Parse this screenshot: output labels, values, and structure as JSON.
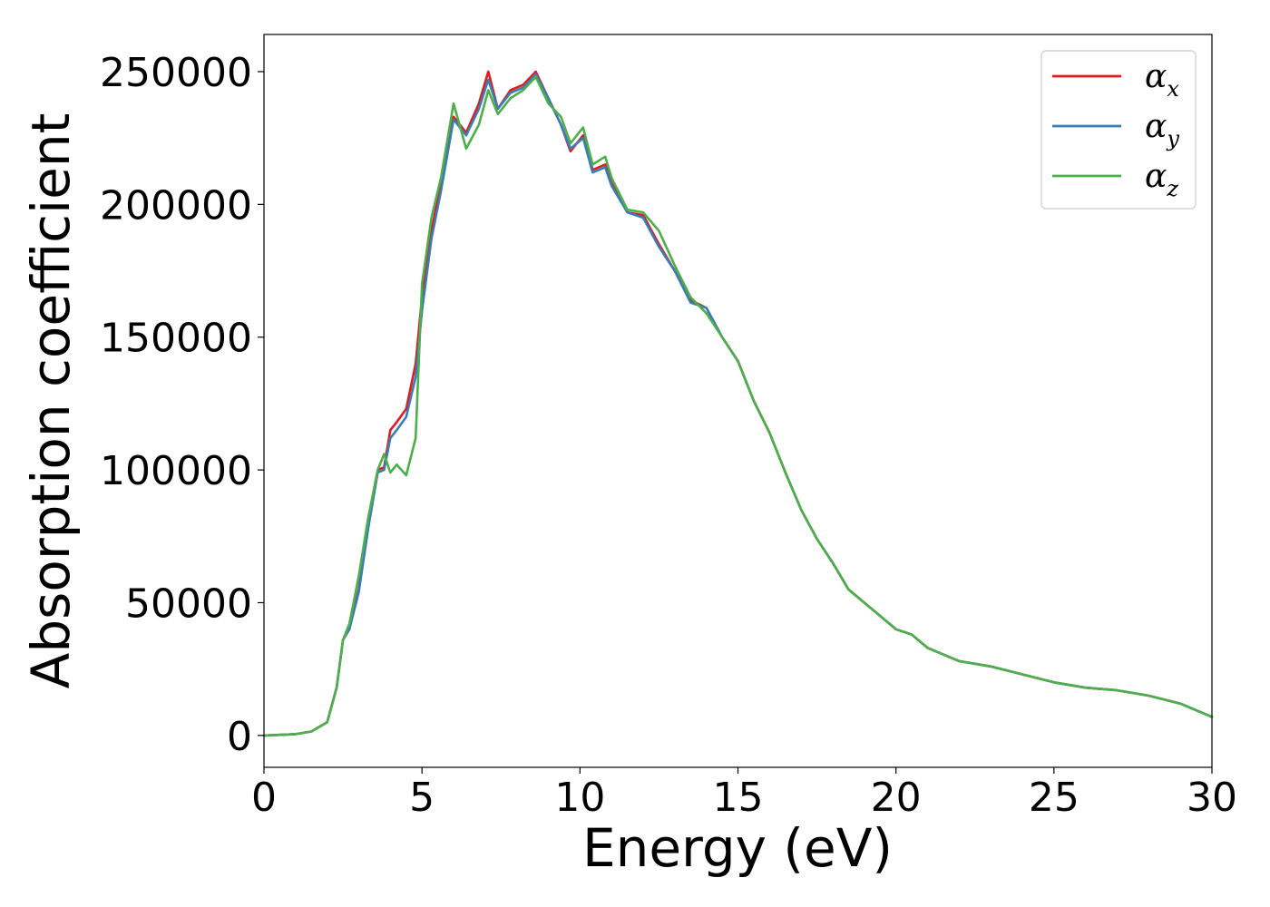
{
  "chart_data": {
    "type": "line",
    "xlabel": "Energy (eV)",
    "ylabel": "Absorption coefficient",
    "xlim": [
      0,
      30
    ],
    "ylim": [
      -12000,
      264000
    ],
    "xticks": [
      0,
      5,
      10,
      15,
      20,
      25,
      30
    ],
    "yticks": [
      0,
      50000,
      100000,
      150000,
      200000,
      250000
    ],
    "xtick_labels": [
      "0",
      "5",
      "10",
      "15",
      "20",
      "25",
      "30"
    ],
    "ytick_labels": [
      "0",
      "50000",
      "100000",
      "150000",
      "200000",
      "250000"
    ],
    "grid": false,
    "legend_position": "top-right",
    "series": [
      {
        "name": "α_x",
        "base": "α",
        "sub": "x",
        "color": "#e41a1c",
        "x": [
          0,
          1,
          1.5,
          2,
          2.3,
          2.5,
          2.7,
          3,
          3.3,
          3.6,
          3.8,
          4,
          4.2,
          4.5,
          4.8,
          5,
          5.3,
          5.6,
          6,
          6.4,
          6.8,
          7.1,
          7.4,
          7.8,
          8.2,
          8.6,
          9,
          9.4,
          9.7,
          10.1,
          10.4,
          10.8,
          11,
          11.5,
          12,
          12.5,
          13,
          13.5,
          14,
          14.5,
          15,
          15.5,
          16,
          16.5,
          17,
          17.5,
          18,
          18.5,
          19,
          19.5,
          20,
          20.5,
          21,
          22,
          23,
          24,
          25,
          26,
          27,
          28,
          29,
          30
        ],
        "y": [
          0,
          500,
          1500,
          5000,
          18000,
          36000,
          40000,
          55000,
          80000,
          100000,
          101000,
          115000,
          118000,
          123000,
          140000,
          165000,
          190000,
          208000,
          233000,
          227000,
          238000,
          250000,
          236000,
          243000,
          245000,
          250000,
          240000,
          230000,
          220000,
          226000,
          213000,
          215000,
          208000,
          197000,
          196000,
          185000,
          175000,
          164000,
          161000,
          150000,
          141000,
          126000,
          114000,
          99000,
          85000,
          74000,
          65000,
          55000,
          50000,
          45000,
          40000,
          38000,
          33000,
          28000,
          26000,
          23000,
          20000,
          18000,
          17000,
          15000,
          12000,
          7000
        ]
      },
      {
        "name": "α_y",
        "base": "α",
        "sub": "y",
        "color": "#377eb8",
        "x": [
          0,
          1,
          1.5,
          2,
          2.3,
          2.5,
          2.7,
          3,
          3.3,
          3.6,
          3.8,
          4,
          4.2,
          4.5,
          4.8,
          5,
          5.3,
          5.6,
          6,
          6.4,
          6.8,
          7.1,
          7.4,
          7.8,
          8.2,
          8.6,
          9,
          9.4,
          9.7,
          10.1,
          10.4,
          10.8,
          11,
          11.5,
          12,
          12.5,
          13,
          13.5,
          14,
          14.5,
          15,
          15.5,
          16,
          16.5,
          17,
          17.5,
          18,
          18.5,
          19,
          19.5,
          20,
          20.5,
          21,
          22,
          23,
          24,
          25,
          26,
          27,
          28,
          29,
          30
        ],
        "y": [
          0,
          500,
          1500,
          5000,
          18000,
          36000,
          40000,
          54000,
          78000,
          99000,
          100000,
          112000,
          115000,
          120000,
          135000,
          160000,
          187000,
          205000,
          232000,
          226000,
          236000,
          247000,
          236000,
          242000,
          244000,
          249000,
          240000,
          230000,
          221000,
          225000,
          212000,
          214000,
          207000,
          197000,
          195000,
          184000,
          175000,
          163000,
          161000,
          150000,
          141000,
          126000,
          114000,
          99000,
          85000,
          74000,
          65000,
          55000,
          50000,
          45000,
          40000,
          38000,
          33000,
          28000,
          26000,
          23000,
          20000,
          18000,
          17000,
          15000,
          12000,
          7000
        ]
      },
      {
        "name": "α_z",
        "base": "α",
        "sub": "z",
        "color": "#4daf4a",
        "x": [
          0,
          1,
          1.5,
          2,
          2.3,
          2.5,
          2.7,
          3,
          3.3,
          3.6,
          3.8,
          4,
          4.2,
          4.5,
          4.8,
          5,
          5.3,
          5.6,
          6,
          6.4,
          6.8,
          7.1,
          7.4,
          7.8,
          8.2,
          8.6,
          9,
          9.4,
          9.7,
          10.1,
          10.4,
          10.8,
          11,
          11.5,
          12,
          12.5,
          13,
          13.5,
          14,
          14.5,
          15,
          15.5,
          16,
          16.5,
          17,
          17.5,
          18,
          18.5,
          19,
          19.5,
          20,
          20.5,
          21,
          22,
          23,
          24,
          25,
          26,
          27,
          28,
          29,
          30
        ],
        "y": [
          0,
          500,
          1500,
          5000,
          18000,
          36000,
          42000,
          60000,
          82000,
          100000,
          106000,
          99000,
          102000,
          98000,
          112000,
          170000,
          195000,
          210000,
          238000,
          221000,
          230000,
          243000,
          234000,
          240000,
          243000,
          248000,
          238000,
          233000,
          223000,
          229000,
          215000,
          218000,
          210000,
          198000,
          197000,
          190000,
          177000,
          165000,
          159000,
          150000,
          141000,
          126000,
          114000,
          99000,
          85000,
          74000,
          65000,
          55000,
          50000,
          45000,
          40000,
          38000,
          33000,
          28000,
          26000,
          23000,
          20000,
          18000,
          17000,
          15000,
          12000,
          7000
        ]
      }
    ]
  }
}
